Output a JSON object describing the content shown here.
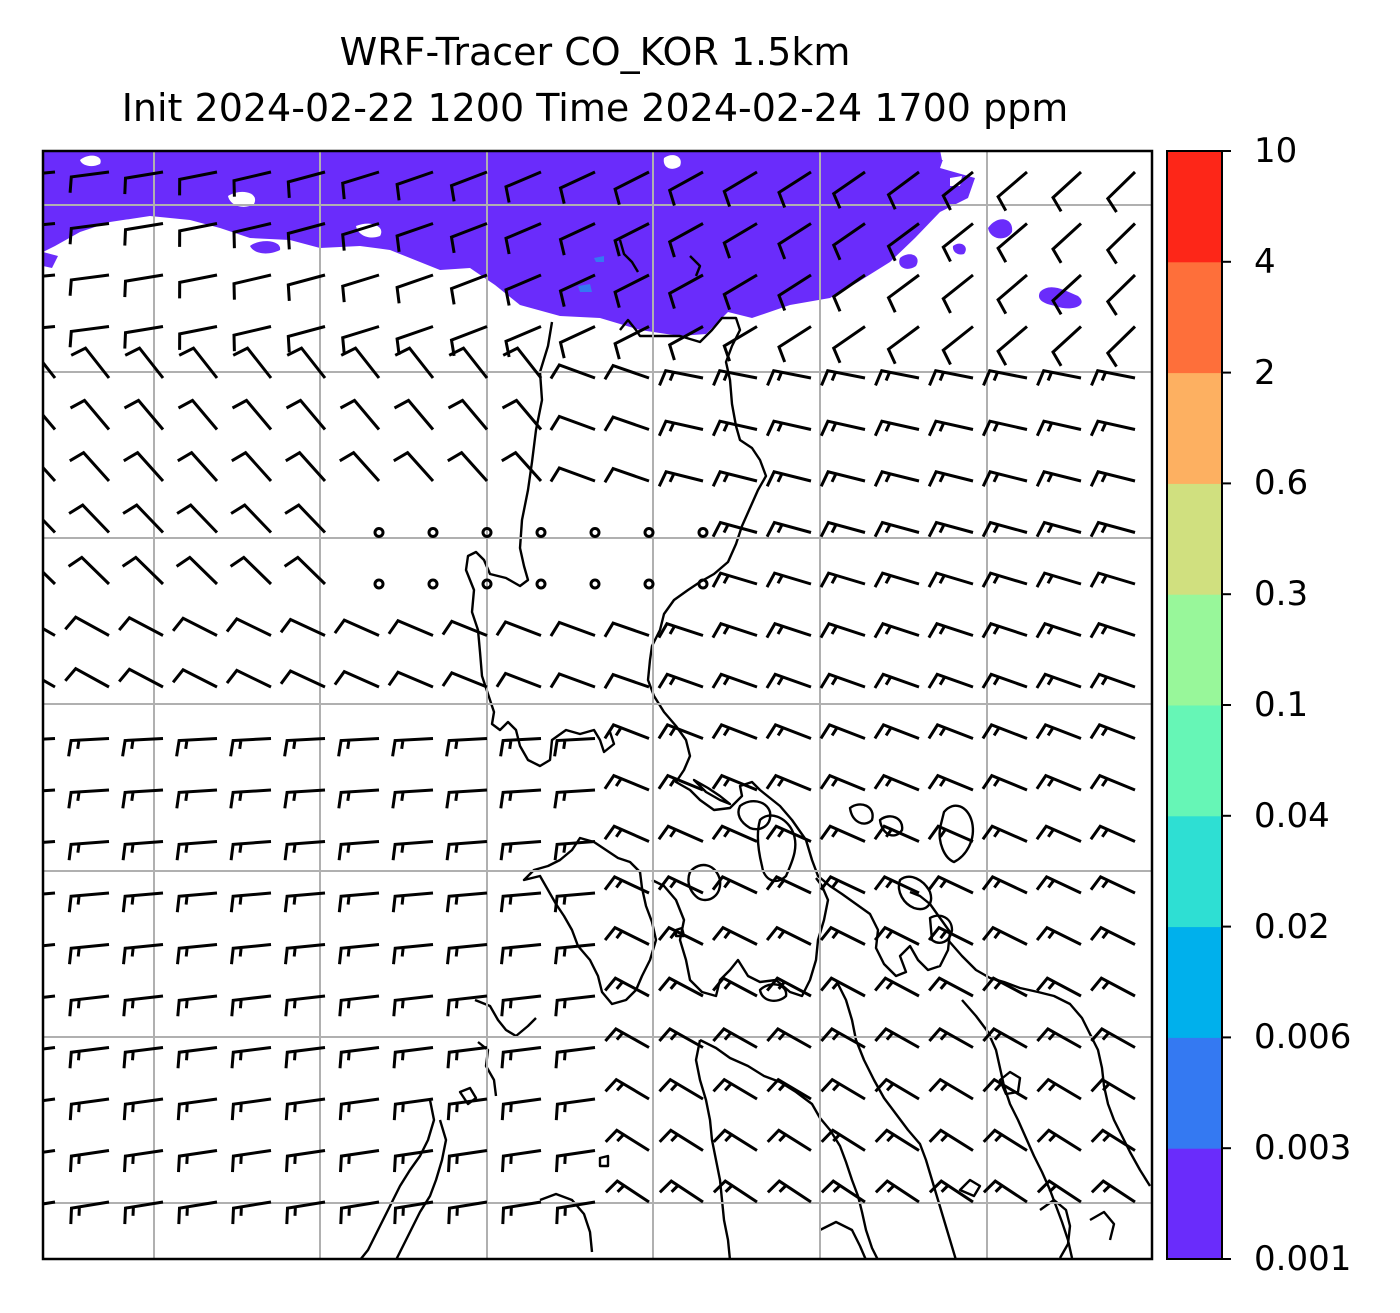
{
  "title": {
    "line1": "WRF-Tracer CO_KOR 1.5km",
    "line2": "Init 2024-02-22 1200 Time 2024-02-24 1700 ppm"
  },
  "colorbar": {
    "levels": [
      "0.001",
      "0.003",
      "0.006",
      "0.02",
      "0.04",
      "0.1",
      "0.3",
      "0.6",
      "2",
      "4",
      "10"
    ],
    "colors": [
      "#6a2cfb",
      "#3479f2",
      "#00b0ec",
      "#2edfd3",
      "#66f6b6",
      "#98f79a",
      "#d0e07f",
      "#fdb061",
      "#fe6f3a",
      "#fd2618"
    ]
  },
  "overlay": {
    "concentration_fill": "#6a2cfb",
    "grid_color": "#b0b0b0",
    "barb_color": "#000000"
  }
}
